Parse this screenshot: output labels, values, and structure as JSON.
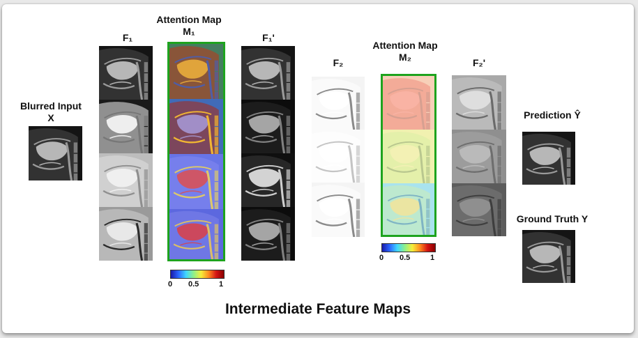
{
  "labels": {
    "blurred_input_line1": "Blurred Input",
    "blurred_input_line2": "X",
    "f1": "F₁",
    "attention1_line1": "Attention Map",
    "attention1_line2": "M₁",
    "f1_prime": "F₁'",
    "f2": "F₂",
    "attention2_line1": "Attention Map",
    "attention2_line2": "M₂",
    "f2_prime": "F₂'",
    "prediction": "Prediction Ŷ",
    "ground_truth": "Ground Truth Y",
    "caption": "Intermediate Feature Maps"
  },
  "colorbar1": {
    "min": "0",
    "mid": "0.5",
    "max": "1"
  },
  "colorbar2": {
    "min": "0",
    "mid": "0.5",
    "max": "1"
  },
  "colors": {
    "frame": "#1ea31e"
  }
}
